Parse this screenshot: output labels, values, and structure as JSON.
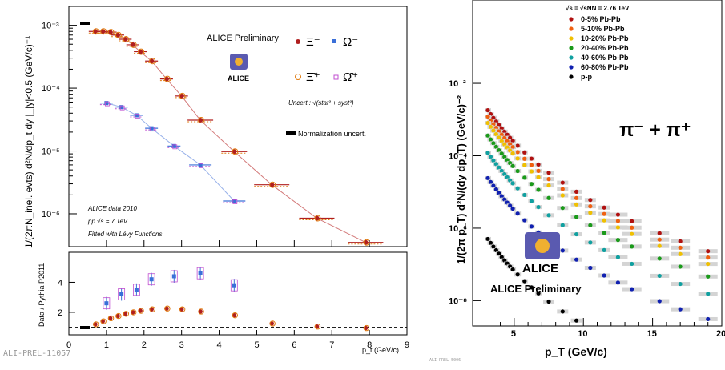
{
  "left_tag": "ALI-PREL-11057",
  "right_tag": "ALI-PREL-5006",
  "chart_data": [
    {
      "type": "scatter",
      "ylabel": "1/(2πN_inel. evts) d²N/dp_t dy |_|y|<0.5 (GeV/c)⁻¹",
      "xlabel": "p_t (GeV/c)",
      "ylog": true,
      "ylim": [
        3e-07,
        0.002
      ],
      "xlim": [
        0,
        9
      ],
      "yticklabels": [
        "10⁻³",
        "10⁻⁴",
        "10⁻⁵",
        "10⁻⁶"
      ],
      "annotation_preliminary": "ALICE Preliminary",
      "logo_text": "ALICE",
      "legend": {
        "items": [
          {
            "label": "Ξ⁻",
            "marker": "filled-circle",
            "color": "#b01e1e"
          },
          {
            "label": "Ω⁻",
            "marker": "filled-square",
            "color": "#3a6fd8"
          },
          {
            "label": "Ξ̄⁺",
            "marker": "open-circle",
            "color": "#e07b10"
          },
          {
            "label": "Ω̄⁺",
            "marker": "open-square",
            "color": "#c04fd0"
          }
        ],
        "uncert_note": "Uncert.: √(stat² + syst²)",
        "norm_note": "Normalization uncert."
      },
      "notes": [
        "ALICE data 2010",
        "pp  √s = 7 TeV",
        "Fitted with Lévy Functions"
      ],
      "series": [
        {
          "name": "Ξ⁻",
          "color": "#b01e1e",
          "x": [
            0.7,
            0.9,
            1.1,
            1.3,
            1.5,
            1.7,
            1.9,
            2.2,
            2.6,
            3.0,
            3.5,
            4.4,
            5.4,
            6.6,
            7.9
          ],
          "y": [
            0.0008,
            0.0008,
            0.00078,
            0.0007,
            0.0006,
            0.00049,
            0.00038,
            0.00027,
            0.00014,
            7.5e-05,
            3.1e-05,
            9.8e-06,
            2.9e-06,
            8.5e-07,
            3.5e-07
          ]
        },
        {
          "name": "Ω⁻",
          "color": "#3a6fd8",
          "x": [
            1.0,
            1.4,
            1.8,
            2.2,
            2.8,
            3.5,
            4.4
          ],
          "y": [
            5.8e-05,
            5e-05,
            3.7e-05,
            2.3e-05,
            1.2e-05,
            6e-06,
            1.6e-06
          ]
        }
      ]
    },
    {
      "type": "scatter",
      "ylabel": "Data / Pythia P2011",
      "xlabel": "p_t (GeV/c)",
      "xlim": [
        0,
        9
      ],
      "ylim": [
        0.5,
        6
      ],
      "yticks": [
        2,
        4
      ],
      "xticks": [
        0,
        1,
        2,
        3,
        4,
        5,
        6,
        7,
        8,
        9
      ],
      "series": [
        {
          "name": "Ξ⁻",
          "color": "#b01e1e",
          "x": [
            0.7,
            0.9,
            1.1,
            1.3,
            1.5,
            1.7,
            1.9,
            2.2,
            2.6,
            3.0,
            3.5,
            4.4,
            5.4,
            6.6,
            7.9
          ],
          "y": [
            1.2,
            1.4,
            1.6,
            1.75,
            1.9,
            2.0,
            2.1,
            2.2,
            2.25,
            2.2,
            2.05,
            1.8,
            1.25,
            1.05,
            0.95
          ]
        },
        {
          "name": "Ω⁻",
          "color": "#3a6fd8",
          "x": [
            1.0,
            1.4,
            1.8,
            2.2,
            2.8,
            3.5,
            4.4
          ],
          "y": [
            2.6,
            3.2,
            3.5,
            4.2,
            4.4,
            4.6,
            3.8
          ]
        }
      ]
    },
    {
      "type": "scatter",
      "ylabel": "1/(2π p_T) d²N/(dy dp_T) (GeV/c)⁻²",
      "xlabel": "p_T (GeV/c)",
      "ylog": true,
      "ylim": [
        2e-09,
        2
      ],
      "xlim": [
        2,
        20
      ],
      "xticks": [
        5,
        10,
        15,
        20
      ],
      "yticklabels": [
        "10⁻²",
        "10⁻⁴",
        "10⁻⁶",
        "10⁻⁸"
      ],
      "energy_label": "√s = √sNN = 2.76 TeV",
      "big_label": "π⁻ + π⁺",
      "preliminary_label": "ALICE Preliminary",
      "logo_text": "ALICE",
      "x": [
        3.1,
        3.3,
        3.5,
        3.7,
        3.9,
        4.1,
        4.3,
        4.5,
        4.7,
        4.9,
        5.25,
        5.75,
        6.25,
        6.75,
        7.5,
        8.5,
        9.5,
        10.5,
        11.5,
        12.5,
        13.5,
        15.5,
        17.0,
        19.0
      ],
      "series": [
        {
          "name": "0-5% Pb-Pb",
          "color": "#b01010",
          "a": 0.9
        },
        {
          "name": "5-10% Pb-Pb",
          "color": "#f06010",
          "a": 0.6
        },
        {
          "name": "10-20% Pb-Pb",
          "color": "#f0c000",
          "a": 0.4
        },
        {
          "name": "20-40% Pb-Pb",
          "color": "#1a9a1a",
          "a": 0.18
        },
        {
          "name": "40-60% Pb-Pb",
          "color": "#10a0a0",
          "a": 0.06
        },
        {
          "name": "60-80% Pb-Pb",
          "color": "#1020b0",
          "a": 0.012
        },
        {
          "name": "p-p",
          "color": "#000000",
          "a": 0.00025
        }
      ],
      "shape": {
        "n": 6.2,
        "p0": 1.8
      }
    }
  ]
}
